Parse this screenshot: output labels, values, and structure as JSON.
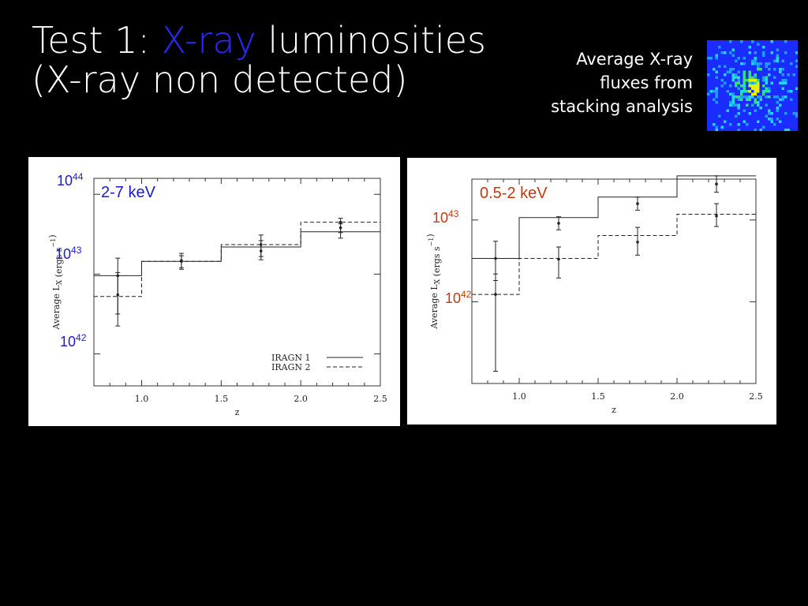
{
  "title": {
    "prefix": "Test 1: ",
    "highlight": "X-ray",
    "suffix": " luminosities",
    "line2": "(X-ray non detected)"
  },
  "note": {
    "line1": "Average X-ray",
    "line2": "fluxes from",
    "line3": "stacking analysis"
  },
  "colors": {
    "highlight": "#2a2aff",
    "blue_label": "#1a1acc",
    "orange_label": "#c23a10",
    "thumb_bg": "#1a2cff"
  },
  "chart_data": [
    {
      "type": "line",
      "band_label": "2-7 keV",
      "overlay_ticks": [
        {
          "base": "10",
          "exp": "44"
        },
        {
          "base": "10",
          "exp": "43"
        },
        {
          "base": "10",
          "exp": "42"
        }
      ],
      "xlabel": "z",
      "ylabel": "Average L",
      "ylabel_sub": "X",
      "ylabel_units": " (ergs s",
      "ylabel_exp": "−1",
      "ylabel_close": ")",
      "xlim": [
        0.7,
        2.5
      ],
      "ylim": [
        41.6,
        44.2
      ],
      "ylog": true,
      "x_ticks": [
        "1.0",
        "1.5",
        "2.0",
        "2.5"
      ],
      "legend": {
        "placement": "bottom-right"
      },
      "series": [
        {
          "name": "IRAGN 1",
          "style": "solid",
          "edges": [
            0.7,
            1.0,
            1.5,
            2.0,
            2.5
          ],
          "values": [
            42.98,
            43.16,
            43.34,
            43.53
          ],
          "points": [
            {
              "x": 0.85,
              "y": 42.98,
              "lo": 42.35,
              "hi": 43.2
            },
            {
              "x": 1.25,
              "y": 43.17,
              "lo": 43.08,
              "hi": 43.23
            },
            {
              "x": 1.75,
              "y": 43.29,
              "lo": 43.18,
              "hi": 43.42
            },
            {
              "x": 2.25,
              "y": 43.58,
              "lo": 43.45,
              "hi": 43.63
            }
          ]
        },
        {
          "name": "IRAGN 2",
          "style": "dashed",
          "edges": [
            0.7,
            1.0,
            1.5,
            2.0,
            2.5
          ],
          "values": [
            42.72,
            43.16,
            43.37,
            43.65
          ],
          "points": [
            {
              "x": 0.85,
              "y": 42.74,
              "lo": 42.5,
              "hi": 43.02
            },
            {
              "x": 1.25,
              "y": 43.16,
              "lo": 43.06,
              "hi": 43.26
            },
            {
              "x": 1.75,
              "y": 43.37,
              "lo": 43.22,
              "hi": 43.49
            },
            {
              "x": 2.25,
              "y": 43.65,
              "lo": 43.52,
              "hi": 43.7
            }
          ]
        }
      ]
    },
    {
      "type": "line",
      "band_label": "0.5-2 keV",
      "overlay_ticks": [
        {
          "base": "10",
          "exp": "43"
        },
        {
          "base": "10",
          "exp": "42"
        }
      ],
      "xlabel": "z",
      "ylabel": "Average L",
      "ylabel_sub": "X",
      "ylabel_units": " (ergs s",
      "ylabel_exp": "−1",
      "ylabel_close": ")",
      "xlim": [
        0.7,
        2.5
      ],
      "ylim": [
        41.0,
        43.5
      ],
      "ylog": true,
      "x_ticks": [
        "1.0",
        "1.5",
        "2.0",
        "2.5"
      ],
      "series": [
        {
          "style": "solid",
          "edges": [
            0.7,
            1.0,
            1.5,
            2.0,
            2.5
          ],
          "values": [
            42.53,
            43.03,
            43.28,
            43.54
          ],
          "points": [
            {
              "x": 0.85,
              "y": 42.53,
              "lo": 42.26,
              "hi": 42.74
            },
            {
              "x": 1.25,
              "y": 42.96,
              "lo": 42.88,
              "hi": 43.04
            },
            {
              "x": 1.75,
              "y": 43.2,
              "lo": 43.12,
              "hi": 43.28
            },
            {
              "x": 2.25,
              "y": 43.44,
              "lo": 43.34,
              "hi": 43.54
            }
          ]
        },
        {
          "style": "dashed",
          "edges": [
            0.7,
            1.0,
            1.5,
            2.0,
            2.5
          ],
          "values": [
            42.09,
            42.53,
            42.81,
            43.07
          ],
          "points": [
            {
              "x": 0.85,
              "y": 42.09,
              "lo": 41.15,
              "hi": 42.34
            },
            {
              "x": 1.25,
              "y": 42.52,
              "lo": 42.29,
              "hi": 42.67
            },
            {
              "x": 1.75,
              "y": 42.73,
              "lo": 42.57,
              "hi": 42.91
            },
            {
              "x": 2.25,
              "y": 43.05,
              "lo": 42.92,
              "hi": 43.2
            }
          ]
        }
      ]
    }
  ]
}
